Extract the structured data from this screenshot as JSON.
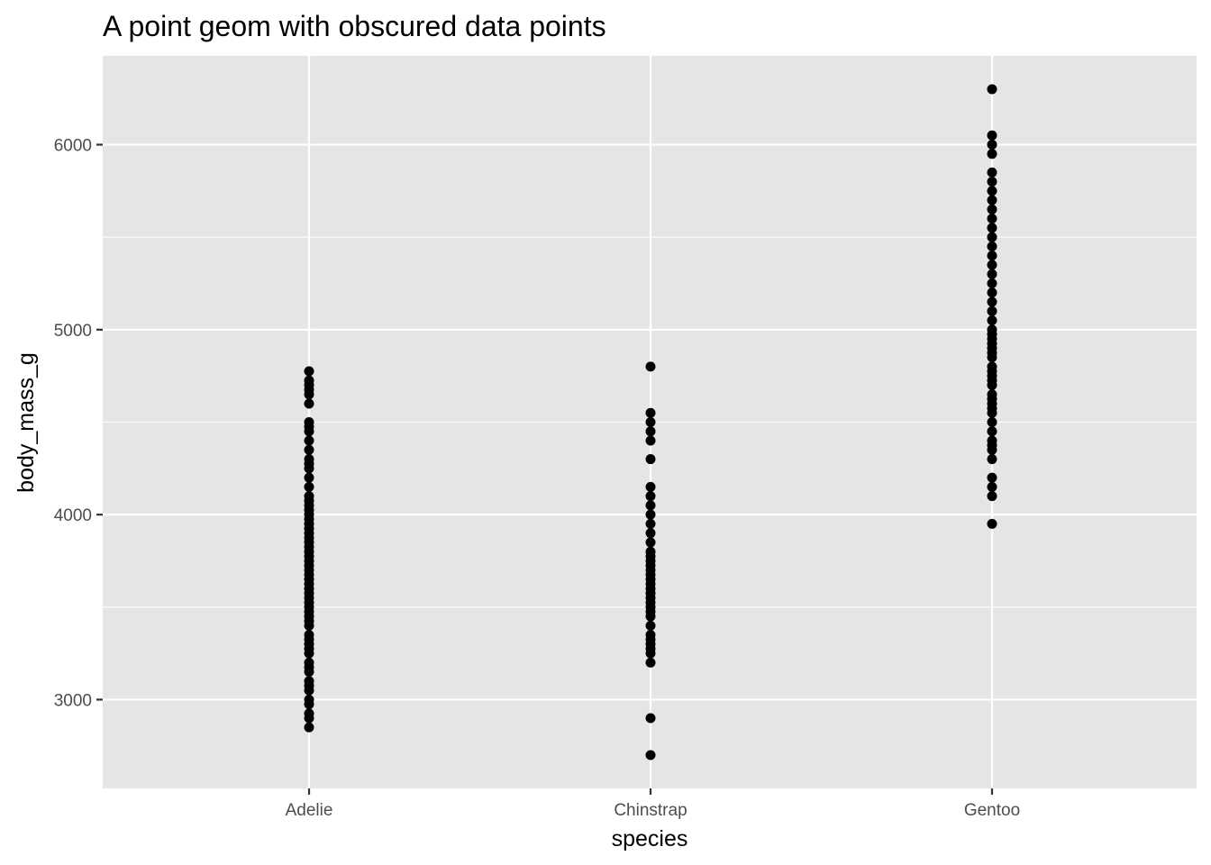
{
  "chart_data": {
    "type": "scatter",
    "title": "A point geom with obscured data points",
    "xlabel": "species",
    "ylabel": "body_mass_g",
    "categories": [
      "Adelie",
      "Chinstrap",
      "Gentoo"
    ],
    "yticks": [
      3000,
      4000,
      5000,
      6000
    ],
    "ylim": [
      2520,
      6480
    ],
    "grid": true,
    "legend": "none",
    "colors": {
      "panel": "#E5E5E5",
      "grid": "#FFFFFF",
      "point": "#000000",
      "tick_label": "#4D4D4D",
      "tick": "#333333"
    },
    "points": [
      {
        "x": "Adelie",
        "y": [
          2850,
          2900,
          2925,
          2975,
          3000,
          3050,
          3075,
          3100,
          3150,
          3175,
          3200,
          3250,
          3275,
          3300,
          3325,
          3350,
          3400,
          3425,
          3450,
          3475,
          3500,
          3525,
          3550,
          3575,
          3600,
          3625,
          3650,
          3675,
          3700,
          3725,
          3750,
          3775,
          3800,
          3825,
          3850,
          3875,
          3900,
          3925,
          3950,
          3975,
          4000,
          4025,
          4050,
          4075,
          4100,
          4150,
          4200,
          4250,
          4275,
          4300,
          4350,
          4400,
          4450,
          4475,
          4500,
          4600,
          4650,
          4675,
          4700,
          4725,
          4775
        ]
      },
      {
        "x": "Chinstrap",
        "y": [
          2700,
          2900,
          3200,
          3250,
          3275,
          3300,
          3325,
          3350,
          3400,
          3450,
          3475,
          3500,
          3525,
          3550,
          3575,
          3600,
          3625,
          3650,
          3675,
          3700,
          3725,
          3750,
          3775,
          3800,
          3850,
          3900,
          3950,
          4000,
          4050,
          4100,
          4150,
          4300,
          4400,
          4450,
          4500,
          4550,
          4800
        ]
      },
      {
        "x": "Gentoo",
        "y": [
          3950,
          4100,
          4150,
          4200,
          4300,
          4350,
          4375,
          4400,
          4450,
          4500,
          4550,
          4575,
          4600,
          4625,
          4650,
          4700,
          4725,
          4750,
          4775,
          4800,
          4850,
          4875,
          4900,
          4925,
          4950,
          4975,
          5000,
          5050,
          5100,
          5150,
          5200,
          5250,
          5300,
          5350,
          5400,
          5450,
          5500,
          5550,
          5600,
          5650,
          5700,
          5750,
          5800,
          5850,
          5950,
          6000,
          6050,
          6300
        ]
      }
    ]
  }
}
